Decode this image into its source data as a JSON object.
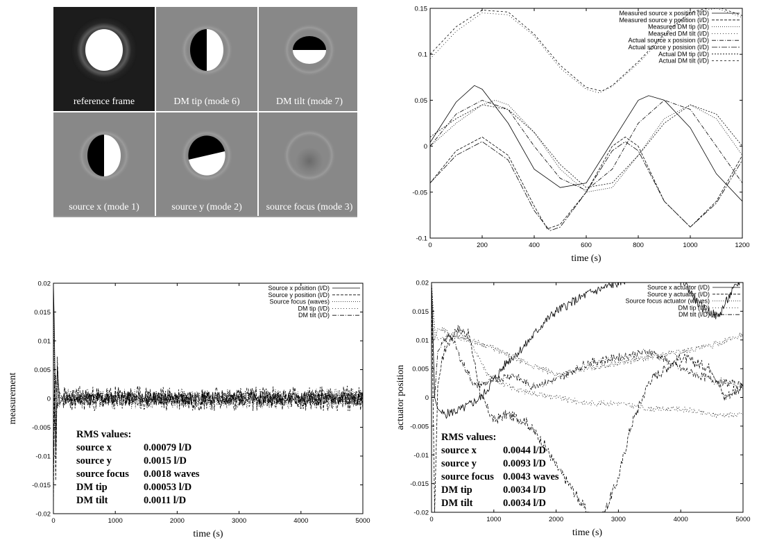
{
  "images": {
    "tiles": [
      {
        "label": "reference frame",
        "type": "reference"
      },
      {
        "label": "DM tip (mode 6)",
        "type": "tipV"
      },
      {
        "label": "DM tilt (mode 7)",
        "type": "tiltH"
      },
      {
        "label": "source x (mode 1)",
        "type": "tipV2"
      },
      {
        "label": "source y (mode 2)",
        "type": "tiltD"
      },
      {
        "label": "source focus (mode 3)",
        "type": "focus"
      }
    ]
  },
  "chart_data": [
    {
      "id": "position_vs_time",
      "type": "line",
      "xlabel": "time (s)",
      "ylabel": "",
      "xlim": [
        0,
        1200
      ],
      "ylim": [
        -0.1,
        0.15
      ],
      "xticks": [
        0,
        200,
        400,
        600,
        800,
        1000,
        1200
      ],
      "yticks": [
        -0.1,
        -0.05,
        0,
        0.05,
        0.1,
        0.15
      ],
      "legend_position": "top-right",
      "series": [
        {
          "name": "Measured source x position (l/D)",
          "dash": "",
          "x": [
            0,
            100,
            170,
            200,
            300,
            400,
            500,
            600,
            700,
            800,
            840,
            900,
            1000,
            1100,
            1200
          ],
          "y": [
            0.004,
            0.048,
            0.066,
            0.062,
            0.025,
            -0.025,
            -0.045,
            -0.04,
            0.005,
            0.05,
            0.055,
            0.05,
            0.02,
            -0.03,
            -0.06
          ]
        },
        {
          "name": "Measured source y position (l/D)",
          "dash": "4,2",
          "x": [
            0,
            100,
            200,
            300,
            400,
            450,
            500,
            600,
            700,
            750,
            800,
            900,
            1000,
            1100,
            1200
          ],
          "y": [
            -0.04,
            -0.005,
            0.01,
            -0.01,
            -0.065,
            -0.09,
            -0.085,
            -0.05,
            0.0,
            0.01,
            0.0,
            -0.06,
            -0.088,
            -0.06,
            -0.01
          ]
        },
        {
          "name": "Measured DM tip (l/D)",
          "dash": "1,2",
          "x": [
            0,
            100,
            200,
            250,
            300,
            400,
            500,
            600,
            700,
            800,
            900,
            1000,
            1100,
            1200
          ],
          "y": [
            0.0,
            0.025,
            0.045,
            0.05,
            0.045,
            0.015,
            -0.025,
            -0.05,
            -0.045,
            -0.01,
            0.03,
            0.045,
            0.03,
            -0.01
          ]
        },
        {
          "name": "Measured DM tilt (l/D)",
          "dash": "1,3",
          "x": [
            0,
            100,
            200,
            300,
            400,
            500,
            600,
            650,
            700,
            800,
            900,
            1000,
            1100,
            1200
          ],
          "y": [
            0.095,
            0.125,
            0.145,
            0.143,
            0.12,
            0.085,
            0.062,
            0.058,
            0.065,
            0.09,
            0.12,
            0.145,
            0.15,
            0.14
          ]
        },
        {
          "name": "Actual source x posision (l/D)",
          "dash": "6,2,1,2",
          "x": [
            0,
            100,
            200,
            300,
            400,
            500,
            600,
            700,
            800,
            900,
            1000,
            1100,
            1200
          ],
          "y": [
            0.0,
            0.035,
            0.05,
            0.04,
            0.0,
            -0.035,
            -0.048,
            -0.025,
            0.025,
            0.05,
            0.04,
            0.0,
            -0.04
          ]
        },
        {
          "name": "Actual source y posision (l/D)",
          "dash": "8,2,2,2",
          "x": [
            0,
            100,
            200,
            300,
            400,
            460,
            500,
            600,
            700,
            750,
            800,
            900,
            1000,
            1100,
            1200
          ],
          "y": [
            -0.04,
            -0.01,
            0.005,
            -0.015,
            -0.07,
            -0.092,
            -0.088,
            -0.05,
            -0.005,
            0.005,
            -0.005,
            -0.06,
            -0.088,
            -0.062,
            -0.015
          ]
        },
        {
          "name": "Actual DM tip (l/D)",
          "dash": "2,2",
          "x": [
            0,
            100,
            200,
            300,
            400,
            500,
            600,
            700,
            800,
            900,
            1000,
            1100,
            1200
          ],
          "y": [
            0.01,
            0.03,
            0.045,
            0.04,
            0.015,
            -0.02,
            -0.045,
            -0.04,
            -0.01,
            0.025,
            0.045,
            0.035,
            0.0
          ]
        },
        {
          "name": "Actual DM tilt (l/D)",
          "dash": "3,3",
          "x": [
            0,
            100,
            200,
            300,
            400,
            500,
            600,
            660,
            700,
            800,
            900,
            1000,
            1100,
            1200
          ],
          "y": [
            0.1,
            0.13,
            0.148,
            0.146,
            0.122,
            0.088,
            0.064,
            0.06,
            0.066,
            0.092,
            0.122,
            0.146,
            0.152,
            0.142
          ]
        }
      ]
    },
    {
      "id": "measurement_vs_time",
      "type": "line",
      "xlabel": "time (s)",
      "ylabel": "measurement",
      "xlim": [
        0,
        5000
      ],
      "ylim": [
        -0.02,
        0.02
      ],
      "xticks": [
        0,
        1000,
        2000,
        3000,
        4000,
        5000
      ],
      "yticks": [
        -0.02,
        -0.015,
        -0.01,
        -0.005,
        0,
        0.005,
        0.01,
        0.015,
        0.02
      ],
      "legend_position": "top-right",
      "series": [
        {
          "name": "Source x position (l/D)",
          "dash": "",
          "x": [
            0,
            20,
            40,
            60,
            80,
            100,
            150,
            5000
          ],
          "y": [
            0.02,
            0.01,
            -0.012,
            0.006,
            0.003,
            -0.001,
            0.0,
            0.0
          ],
          "noise": 0.0012,
          "seed": 11
        },
        {
          "name": "Source y position (l/D)",
          "dash": "4,2",
          "x": [
            0,
            20,
            40,
            60,
            80,
            100,
            150,
            5000
          ],
          "y": [
            -0.02,
            0.012,
            -0.018,
            0.008,
            0.002,
            0.001,
            0.0,
            0.0
          ],
          "noise": 0.0022,
          "seed": 23
        },
        {
          "name": "Source focus (waves)",
          "dash": "1,2",
          "x": [
            0,
            30,
            60,
            90,
            120,
            5000
          ],
          "y": [
            0.02,
            -0.01,
            0.004,
            -0.002,
            0.0,
            0.0
          ],
          "noise": 0.0018,
          "seed": 37
        },
        {
          "name": "DM tip (l/D)",
          "dash": "1,3",
          "x": [
            0,
            30,
            60,
            90,
            120,
            5000
          ],
          "y": [
            0.015,
            -0.008,
            0.003,
            0.0,
            0.0,
            0.0
          ],
          "noise": 0.0008,
          "seed": 41
        },
        {
          "name": "DM tilt (l/D)",
          "dash": "6,2,1,2",
          "x": [
            0,
            30,
            60,
            90,
            120,
            5000
          ],
          "y": [
            -0.015,
            0.006,
            -0.002,
            0.001,
            0.0,
            0.0
          ],
          "noise": 0.0012,
          "seed": 53
        }
      ],
      "annotation": {
        "title": "RMS values:",
        "rows": [
          {
            "label": "source x",
            "value": "0.00079  l/D"
          },
          {
            "label": "source y",
            "value": "0.0015  l/D"
          },
          {
            "label": "source focus",
            "value": "0.0018 waves"
          },
          {
            "label": "DM tip",
            "value": "0.00053 l/D"
          },
          {
            "label": "DM tilt",
            "value": "0.0011 l/D"
          }
        ]
      }
    },
    {
      "id": "actuator_vs_time",
      "type": "line",
      "xlabel": "time (s)",
      "ylabel": "actuator position",
      "xlim": [
        0,
        5000
      ],
      "ylim": [
        -0.02,
        0.02
      ],
      "xticks": [
        0,
        1000,
        2000,
        3000,
        4000,
        5000
      ],
      "yticks": [
        -0.02,
        -0.015,
        -0.01,
        -0.005,
        0,
        0.005,
        0.01,
        0.015,
        0.02
      ],
      "legend_position": "top-right",
      "series": [
        {
          "name": "Source x actuator (l/D)",
          "dash": "",
          "x": [
            0,
            50,
            100,
            200,
            500,
            800,
            1000,
            1200,
            1500,
            1800,
            2000,
            2500,
            3000,
            3500,
            4000,
            4300,
            4600,
            4800,
            5000
          ],
          "y": [
            0.02,
            0.0,
            -0.002,
            -0.003,
            -0.002,
            0.0,
            0.003,
            0.006,
            0.009,
            0.013,
            0.015,
            0.018,
            0.02,
            0.022,
            0.021,
            0.016,
            0.014,
            0.018,
            0.021
          ],
          "noise": 0.0008,
          "seed": 5
        },
        {
          "name": "Source y actuator (l/D)",
          "dash": "4,2",
          "x": [
            0,
            50,
            100,
            200,
            400,
            600,
            800,
            1000,
            1200,
            1500,
            1800,
            2000,
            2200,
            2500,
            2700,
            3000,
            3200,
            3500,
            4000,
            4500,
            4700,
            5000
          ],
          "y": [
            0.02,
            -0.02,
            0.002,
            0.008,
            0.012,
            0.011,
            0.0,
            -0.004,
            -0.003,
            -0.004,
            -0.008,
            -0.012,
            -0.015,
            -0.02,
            -0.022,
            -0.014,
            -0.005,
            0.003,
            0.007,
            0.005,
            0.0,
            0.002
          ],
          "noise": 0.0009,
          "seed": 17
        },
        {
          "name": "Source focus actuator (waves)",
          "dash": "1,2",
          "x": [
            0,
            50,
            100,
            300,
            600,
            900,
            1100,
            1500,
            2000,
            2500,
            3000,
            3500,
            4000,
            4500,
            5000
          ],
          "y": [
            0.02,
            0.01,
            0.012,
            0.011,
            0.01,
            0.009,
            0.008,
            0.006,
            0.004,
            0.005,
            0.006,
            0.007,
            0.008,
            0.009,
            0.011
          ],
          "noise": 0.0005,
          "seed": 29
        },
        {
          "name": "DM tip (l/D)",
          "dash": "1,3",
          "x": [
            0,
            50,
            100,
            300,
            600,
            900,
            1200,
            1500,
            2000,
            2500,
            3000,
            3500,
            4000,
            4500,
            5000
          ],
          "y": [
            0.02,
            0.012,
            0.01,
            0.011,
            0.01,
            0.004,
            0.002,
            0.001,
            0.0,
            -0.001,
            -0.001,
            -0.002,
            -0.002,
            -0.003,
            -0.003
          ],
          "noise": 0.0005,
          "seed": 31
        },
        {
          "name": "DM tilt (l/D)",
          "dash": "6,2,1,2",
          "x": [
            0,
            50,
            100,
            300,
            500,
            700,
            1000,
            1300,
            1600,
            2000,
            2500,
            3000,
            3500,
            4000,
            4500,
            5000
          ],
          "y": [
            0.02,
            0.0,
            0.008,
            0.011,
            0.006,
            0.002,
            0.003,
            0.004,
            0.002,
            0.003,
            0.006,
            0.007,
            0.008,
            0.005,
            0.003,
            0.002
          ],
          "noise": 0.0007,
          "seed": 43
        }
      ],
      "annotation": {
        "title": "RMS values:",
        "rows": [
          {
            "label": "source x",
            "value": "0.0044  l/D"
          },
          {
            "label": "source y",
            "value": "0.0093  l/D"
          },
          {
            "label": "source focus",
            "value": "0.0043 waves"
          },
          {
            "label": "DM tip",
            "value": "0.0034 l/D"
          },
          {
            "label": "DM tilt",
            "value": "0.0034 l/D"
          }
        ]
      }
    }
  ]
}
